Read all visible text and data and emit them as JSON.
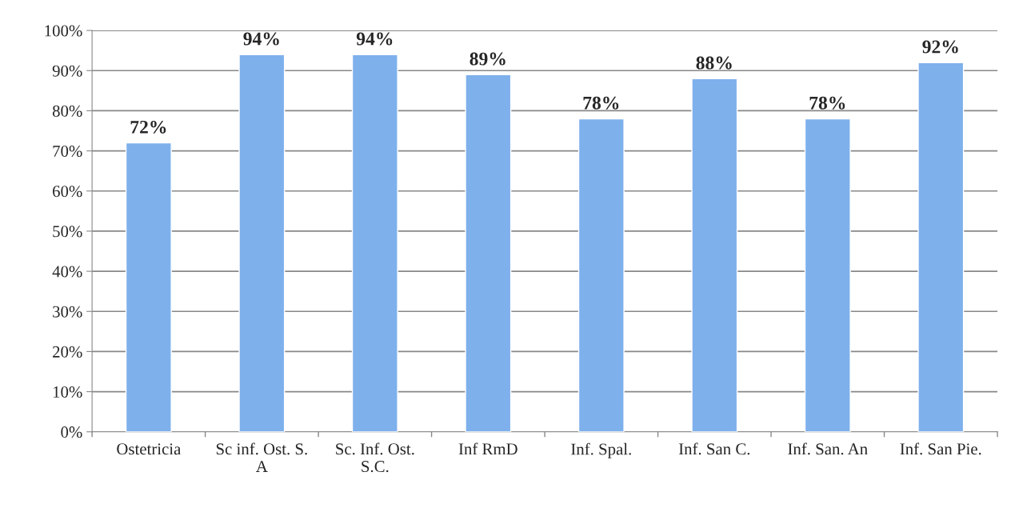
{
  "chart_data": {
    "type": "bar",
    "categories": [
      "Ostetricia",
      "Sc inf. Ost. S.\nA",
      "Sc. Inf. Ost.\nS.C.",
      "Inf RmD",
      "Inf. Spal.",
      "Inf. San C.",
      "Inf. San. An",
      "Inf. San Pie."
    ],
    "values": [
      72,
      94,
      94,
      89,
      78,
      88,
      78,
      92
    ],
    "value_labels": [
      "72%",
      "94%",
      "94%",
      "89%",
      "78%",
      "88%",
      "78%",
      "92%"
    ],
    "color": "#7eb0ec",
    "ylim": [
      0,
      100
    ],
    "yticks": [
      {
        "value": 0,
        "label": "0%"
      },
      {
        "value": 10,
        "label": "10%"
      },
      {
        "value": 20,
        "label": "20%"
      },
      {
        "value": 30,
        "label": "30%"
      },
      {
        "value": 40,
        "label": "40%"
      },
      {
        "value": 50,
        "label": "50%"
      },
      {
        "value": 60,
        "label": "60%"
      },
      {
        "value": 70,
        "label": "70%"
      },
      {
        "value": 80,
        "label": "80%"
      },
      {
        "value": 90,
        "label": "90%"
      },
      {
        "value": 100,
        "label": "100%"
      }
    ],
    "grid": "y",
    "legend": false
  }
}
